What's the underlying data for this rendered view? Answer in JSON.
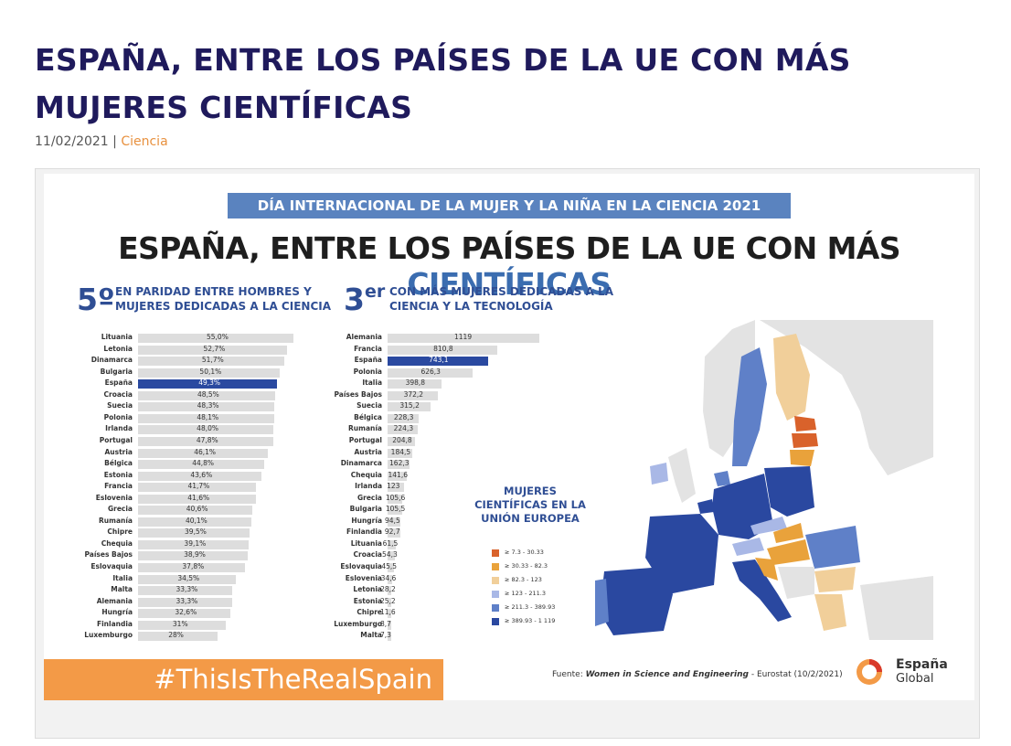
{
  "article": {
    "title": "ESPAÑA, ENTRE LOS PAÍSES DE LA UE CON MÁS MUJERES CIENTÍFICAS",
    "date": "11/02/2021",
    "separator": " | ",
    "category": "Ciencia"
  },
  "infographic": {
    "banner": "DÍA INTERNACIONAL DE LA MUJER Y LA NIÑA EN LA CIENCIA 2021",
    "title_main": "ESPAÑA, ENTRE LOS PAÍSES DE LA UE CON MÁS ",
    "title_accent": "CIENTÍFICAS",
    "left_rank": "5º",
    "left_text_1": "EN PARIDAD ENTRE HOMBRES Y",
    "left_text_2": "MUJERES DEDICADAS A LA CIENCIA",
    "mid_rank": "3",
    "mid_rank_sup": "er",
    "mid_text_1": "CON MÁS MUJERES DEDICADAS A LA",
    "mid_text_2": "CIENCIA Y LA TECNOLOGÍA",
    "map_title_1": "MUJERES",
    "map_title_2": "CIENTÍFICAS EN LA",
    "map_title_3": "UNIÓN EUROPEA",
    "hashtag": "#ThisIsTheRealSpain",
    "source_prefix": "Fuente: ",
    "source_title": "Women in Science and Engineering",
    "source_suffix": " - Eurostat (10/2/2021)",
    "logo_line1": "España",
    "logo_line2": "Global",
    "colors": {
      "banner": "#5a83bf",
      "highlight": "#2a49a0",
      "bar": "#dddddd",
      "hashtag_bg": "#f39a47",
      "title_accent": "#3b6db0"
    }
  },
  "chart_data": [
    {
      "type": "bar",
      "orientation": "horizontal",
      "title": "",
      "categories": [
        "Lituania",
        "Letonia",
        "Dinamarca",
        "Bulgaria",
        "España",
        "Croacia",
        "Suecia",
        "Polonia",
        "Irlanda",
        "Portugal",
        "Austria",
        "Bélgica",
        "Estonia",
        "Francia",
        "Eslovenia",
        "Grecia",
        "Rumanía",
        "Chipre",
        "Chequia",
        "Países Bajos",
        "Eslovaquia",
        "Italia",
        "Malta",
        "Alemania",
        "Hungría",
        "Finlandia",
        "Luxemburgo"
      ],
      "values": [
        55.0,
        52.7,
        51.7,
        50.1,
        49.3,
        48.5,
        48.3,
        48.1,
        48.0,
        47.8,
        46.1,
        44.8,
        43.6,
        41.7,
        41.6,
        40.6,
        40.1,
        39.5,
        39.1,
        38.9,
        37.8,
        34.5,
        33.3,
        33.3,
        32.6,
        31,
        28
      ],
      "labels": [
        "55,0%",
        "52,7%",
        "51,7%",
        "50,1%",
        "49,3%",
        "48,5%",
        "48,3%",
        "48,1%",
        "48,0%",
        "47,8%",
        "46,1%",
        "44,8%",
        "43,6%",
        "41,7%",
        "41,6%",
        "40,6%",
        "40,1%",
        "39,5%",
        "39,1%",
        "38,9%",
        "37,8%",
        "34,5%",
        "33,3%",
        "33,3%",
        "32,6%",
        "31%",
        "28%"
      ],
      "highlight": "España",
      "xlim": [
        0,
        55
      ]
    },
    {
      "type": "bar",
      "orientation": "horizontal",
      "title": "",
      "categories": [
        "Alemania",
        "Francia",
        "España",
        "Polonia",
        "Italia",
        "Países Bajos",
        "Suecia",
        "Bélgica",
        "Rumanía",
        "Portugal",
        "Austria",
        "Dinamarca",
        "Chequia",
        "Irlanda",
        "Grecia",
        "Bulgaria",
        "Hungría",
        "Finlandia",
        "Lituania",
        "Croacia",
        "Eslovaquia",
        "Eslovenia",
        "Letonia",
        "Estonia",
        "Chipre",
        "Luxemburgo",
        "Malta"
      ],
      "values": [
        1119,
        810.8,
        743.1,
        626.3,
        398.8,
        372.2,
        315.2,
        228.3,
        224.3,
        204.8,
        184.5,
        162.3,
        141.6,
        123,
        105.6,
        105.5,
        94.5,
        92.7,
        61.5,
        54.3,
        45.5,
        34.6,
        28.2,
        25.2,
        11.6,
        8.7,
        7.3
      ],
      "labels": [
        "1119",
        "810,8",
        "743,1",
        "626,3",
        "398,8",
        "372,2",
        "315,2",
        "228,3",
        "224,3",
        "204,8",
        "184,5",
        "162,3",
        "141,6",
        "123",
        "105,6",
        "105,5",
        "94,5",
        "92,7",
        "61,5",
        "54,3",
        "45,5",
        "34,6",
        "28,2",
        "25,2",
        "11,6",
        "8,7",
        "7,3"
      ],
      "highlight": "España",
      "xlim": [
        0,
        1119
      ]
    }
  ],
  "legend": [
    {
      "label": "≥ 7.3  -  30.33",
      "color": "#d9622b"
    },
    {
      "label": "≥ 30.33  -  82.3",
      "color": "#e9a23b"
    },
    {
      "label": "≥ 82.3  -  123",
      "color": "#f1cf9a"
    },
    {
      "label": "≥ 123  -  211.3",
      "color": "#a9b8e6"
    },
    {
      "label": "≥ 211.3  -  389.93",
      "color": "#5f80c8"
    },
    {
      "label": "≥ 389.93  -  1 119",
      "color": "#2a48a0"
    }
  ]
}
